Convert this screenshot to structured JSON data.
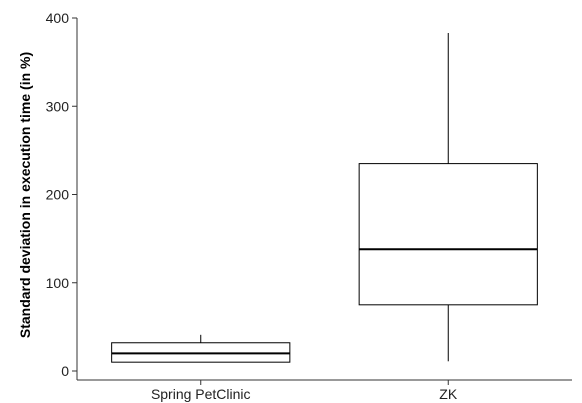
{
  "chart_data": {
    "type": "box",
    "title": "",
    "xlabel": "",
    "ylabel": "Standard deviation in execution time (in %)",
    "ylim": [
      0,
      400
    ],
    "yticks": [
      0,
      100,
      200,
      300,
      400
    ],
    "categories": [
      "Spring PetClinic",
      "ZK"
    ],
    "boxes": [
      {
        "category": "Spring PetClinic",
        "min": 10,
        "q1": 10,
        "median": 20,
        "q3": 32,
        "max": 41
      },
      {
        "category": "ZK",
        "min": 11,
        "q1": 75,
        "median": 138,
        "q3": 235,
        "max": 383
      }
    ],
    "grid": false,
    "legend": "none",
    "colors": {
      "stroke": "#000000",
      "fill": "#ffffff"
    }
  }
}
